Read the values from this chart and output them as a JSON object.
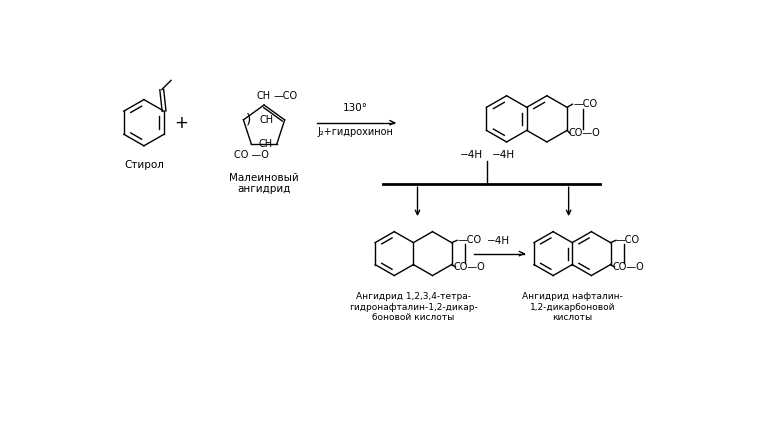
{
  "bg_color": "#ffffff",
  "text_color": "#000000",
  "figsize": [
    7.67,
    4.45
  ],
  "dpi": 100,
  "styrene_label": "Стирол",
  "maleic_label": "Малеиновый\nангидрид",
  "condition1": "130°",
  "condition2": "J₂+гидрохинон",
  "minus4H_left": "−4H",
  "minus4H_right": "−4H",
  "minus4H_mid": "−4H",
  "product1_label": "Ангидрид 1,2,3,4-тетра-\nгидронафталин-1,2-дикар-\nбоновой кислоты",
  "product2_label": "Ангидрид нафталин-\n1,2-дикарбоновой\nкислоты",
  "fontsize_label": 7.5,
  "fontsize_chem": 7,
  "fontsize_condition": 7.5,
  "lw": 1.0
}
